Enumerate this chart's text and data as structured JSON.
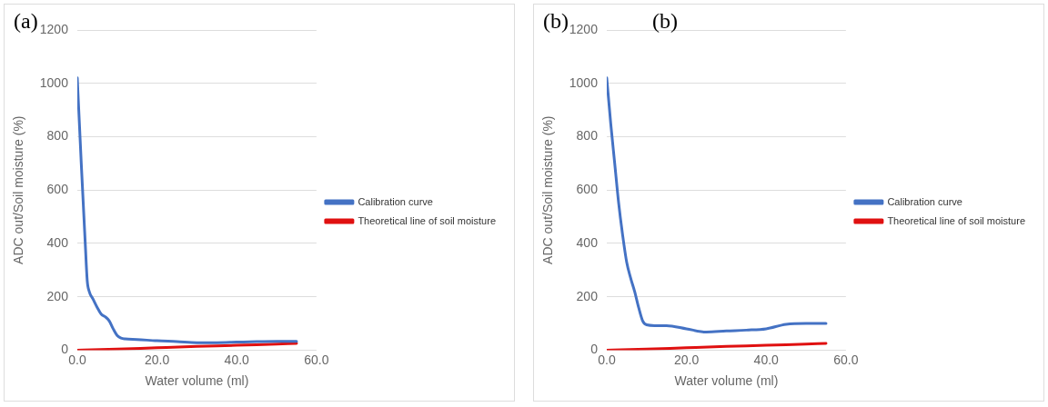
{
  "chart_data": [
    {
      "type": "line",
      "annotations": [
        "(a)"
      ],
      "xlabel": "Water volume (ml)",
      "ylabel": "ADC out/Soil moisture (%)",
      "xlim": [
        0,
        60
      ],
      "xticks": [
        {
          "value": 0,
          "label": "0.0"
        },
        {
          "value": 20,
          "label": "20.0"
        },
        {
          "value": 40,
          "label": "40.0"
        },
        {
          "value": 60,
          "label": "60.0"
        }
      ],
      "ylim": [
        0,
        1200
      ],
      "yticks": [
        0,
        200,
        400,
        600,
        800,
        1000,
        1200
      ],
      "grid": "y",
      "legend": "right",
      "marker": "none",
      "line_style": "solid",
      "series": [
        {
          "name": "Calibration curve",
          "color": "#4472c4",
          "x": [
            0,
            1,
            2,
            2.5,
            3,
            4,
            5,
            6,
            7,
            8,
            9,
            10,
            11,
            12,
            15,
            20,
            25,
            30,
            35,
            40,
            45,
            50,
            55
          ],
          "values": [
            1020,
            700,
            400,
            260,
            220,
            190,
            160,
            135,
            125,
            110,
            80,
            55,
            45,
            42,
            40,
            35,
            32,
            28,
            28,
            30,
            32,
            33,
            33
          ]
        },
        {
          "name": "Theoretical line of soil moisture",
          "color": "#e01010",
          "x": [
            0,
            10,
            20,
            30,
            40,
            50,
            55
          ],
          "values": [
            0,
            4,
            9,
            14,
            18,
            23,
            25
          ]
        }
      ]
    },
    {
      "type": "line",
      "annotations": [
        "(b)",
        "(b)"
      ],
      "xlabel": "Water volume (ml)",
      "ylabel": "ADC out/Soil moisture (%)",
      "xlim": [
        0,
        60
      ],
      "xticks": [
        {
          "value": 0,
          "label": "0.0"
        },
        {
          "value": 20,
          "label": "20.0"
        },
        {
          "value": 40,
          "label": "40.0"
        },
        {
          "value": 60,
          "label": "60.0"
        }
      ],
      "ylim": [
        0,
        1200
      ],
      "yticks": [
        0,
        200,
        400,
        600,
        800,
        1000,
        1200
      ],
      "grid": "y",
      "legend": "right",
      "marker": "none",
      "line_style": "solid",
      "series": [
        {
          "name": "Calibration curve",
          "color": "#4472c4",
          "x": [
            0,
            1,
            2,
            3,
            4,
            5,
            6,
            7,
            8,
            9,
            10,
            12,
            15,
            20,
            25,
            30,
            35,
            40,
            45,
            50,
            55
          ],
          "values": [
            1020,
            850,
            700,
            550,
            430,
            330,
            270,
            220,
            160,
            110,
            95,
            92,
            92,
            80,
            68,
            72,
            75,
            80,
            97,
            100,
            100
          ]
        },
        {
          "name": "Theoretical line of soil moisture",
          "color": "#e01010",
          "x": [
            0,
            10,
            20,
            30,
            40,
            50,
            55
          ],
          "values": [
            0,
            4,
            9,
            14,
            18,
            23,
            25
          ]
        }
      ]
    }
  ]
}
